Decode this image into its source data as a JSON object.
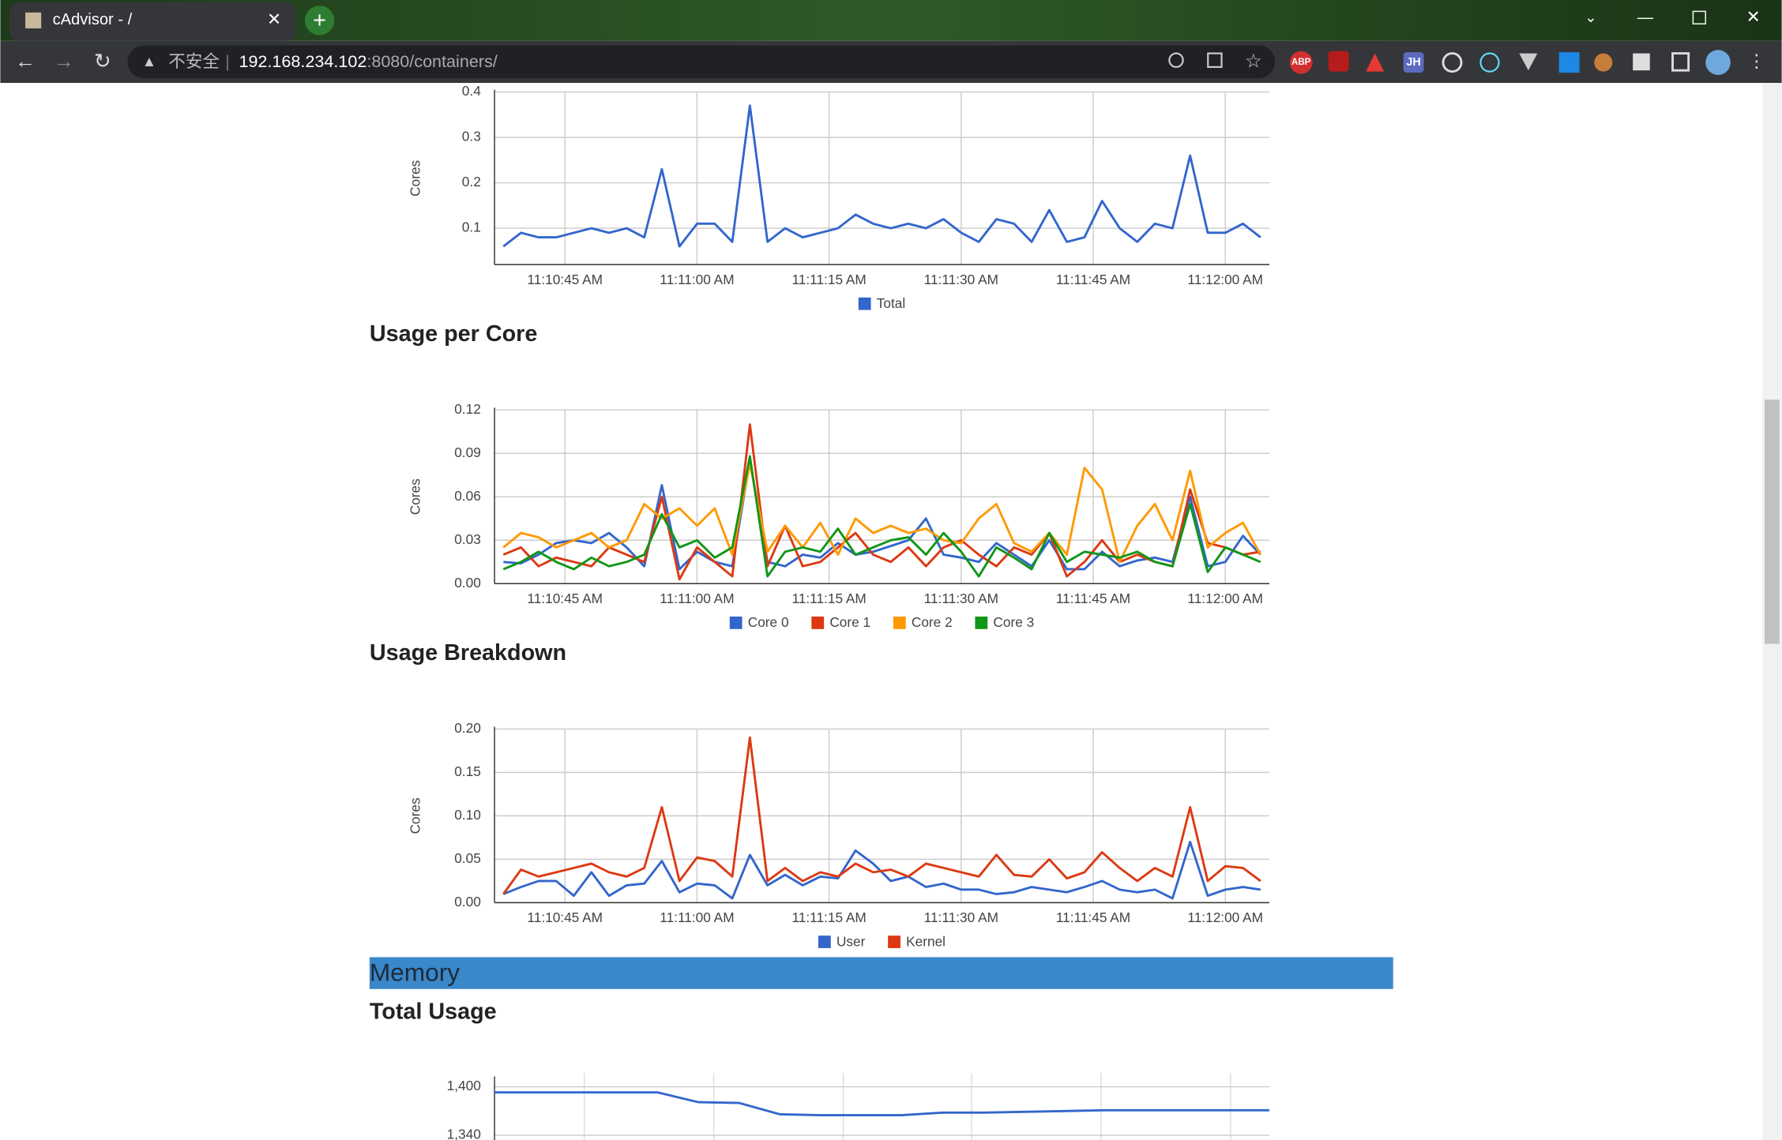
{
  "browser": {
    "tab_title": "cAdvisor - /",
    "address_warning": "不安全",
    "address_host": "192.168.234.102",
    "address_rest": ":8080/containers/",
    "extensions": [
      "ABP",
      "JH"
    ]
  },
  "memory_section": "Memory",
  "chart_data": [
    {
      "type": "line",
      "y_label": "Cores",
      "legend": "bottom",
      "grid": true,
      "x": [
        "11:10:38 AM",
        "11:10:40 AM",
        "11:10:42 AM",
        "11:10:44 AM",
        "11:10:46 AM",
        "11:10:48 AM",
        "11:10:50 AM",
        "11:10:52 AM",
        "11:10:54 AM",
        "11:10:56 AM",
        "11:10:58 AM",
        "11:11:00 AM",
        "11:11:02 AM",
        "11:11:04 AM",
        "11:11:06 AM",
        "11:11:08 AM",
        "11:11:10 AM",
        "11:11:12 AM",
        "11:11:14 AM",
        "11:11:16 AM",
        "11:11:18 AM",
        "11:11:20 AM",
        "11:11:22 AM",
        "11:11:24 AM",
        "11:11:26 AM",
        "11:11:28 AM",
        "11:11:30 AM",
        "11:11:32 AM",
        "11:11:34 AM",
        "11:11:36 AM",
        "11:11:38 AM",
        "11:11:40 AM",
        "11:11:42 AM",
        "11:11:44 AM",
        "11:11:46 AM",
        "11:11:48 AM",
        "11:11:50 AM",
        "11:11:52 AM",
        "11:11:54 AM",
        "11:11:56 AM",
        "11:11:58 AM",
        "11:12:00 AM",
        "11:12:02 AM",
        "11:12:04 AM"
      ],
      "xlim": [
        "11:10:37 AM",
        "11:12:05 AM"
      ],
      "xticks": [
        "11:10:45 AM",
        "11:11:00 AM",
        "11:11:15 AM",
        "11:11:30 AM",
        "11:11:45 AM",
        "11:12:00 AM"
      ],
      "ylim": [
        0.02,
        0.4
      ],
      "yticks": [
        0.1,
        0.2,
        0.3,
        0.4
      ],
      "series": [
        {
          "name": "Total",
          "color": "#3366cc",
          "values": [
            0.06,
            0.09,
            0.08,
            0.08,
            0.09,
            0.1,
            0.09,
            0.1,
            0.08,
            0.23,
            0.06,
            0.11,
            0.11,
            0.07,
            0.37,
            0.07,
            0.1,
            0.08,
            0.09,
            0.1,
            0.13,
            0.11,
            0.1,
            0.11,
            0.1,
            0.12,
            0.09,
            0.07,
            0.12,
            0.11,
            0.07,
            0.14,
            0.07,
            0.08,
            0.16,
            0.1,
            0.07,
            0.11,
            0.1,
            0.26,
            0.09,
            0.09,
            0.11,
            0.08
          ]
        }
      ]
    },
    {
      "type": "line",
      "title": "Usage per Core",
      "y_label": "Cores",
      "legend": "bottom",
      "grid": true,
      "x": [
        "11:10:38 AM",
        "11:10:40 AM",
        "11:10:42 AM",
        "11:10:44 AM",
        "11:10:46 AM",
        "11:10:48 AM",
        "11:10:50 AM",
        "11:10:52 AM",
        "11:10:54 AM",
        "11:10:56 AM",
        "11:10:58 AM",
        "11:11:00 AM",
        "11:11:02 AM",
        "11:11:04 AM",
        "11:11:06 AM",
        "11:11:08 AM",
        "11:11:10 AM",
        "11:11:12 AM",
        "11:11:14 AM",
        "11:11:16 AM",
        "11:11:18 AM",
        "11:11:20 AM",
        "11:11:22 AM",
        "11:11:24 AM",
        "11:11:26 AM",
        "11:11:28 AM",
        "11:11:30 AM",
        "11:11:32 AM",
        "11:11:34 AM",
        "11:11:36 AM",
        "11:11:38 AM",
        "11:11:40 AM",
        "11:11:42 AM",
        "11:11:44 AM",
        "11:11:46 AM",
        "11:11:48 AM",
        "11:11:50 AM",
        "11:11:52 AM",
        "11:11:54 AM",
        "11:11:56 AM",
        "11:11:58 AM",
        "11:12:00 AM",
        "11:12:02 AM",
        "11:12:04 AM"
      ],
      "xlim": [
        "11:10:37 AM",
        "11:12:05 AM"
      ],
      "xticks": [
        "11:10:45 AM",
        "11:11:00 AM",
        "11:11:15 AM",
        "11:11:30 AM",
        "11:11:45 AM",
        "11:12:00 AM"
      ],
      "ylim": [
        0,
        0.12
      ],
      "yticks": [
        {
          "value": 0,
          "label": "0.00"
        },
        {
          "value": 0.03,
          "label": "0.03"
        },
        {
          "value": 0.06,
          "label": "0.06"
        },
        {
          "value": 0.09,
          "label": "0.09"
        },
        {
          "value": 0.12,
          "label": "0.12"
        }
      ],
      "series": [
        {
          "name": "Core 0",
          "color": "#3366cc",
          "values": [
            0.015,
            0.014,
            0.02,
            0.028,
            0.03,
            0.028,
            0.035,
            0.025,
            0.012,
            0.068,
            0.01,
            0.022,
            0.015,
            0.012,
            0.085,
            0.015,
            0.012,
            0.02,
            0.018,
            0.028,
            0.02,
            0.022,
            0.026,
            0.03,
            0.045,
            0.02,
            0.018,
            0.015,
            0.028,
            0.02,
            0.012,
            0.03,
            0.01,
            0.01,
            0.022,
            0.012,
            0.016,
            0.018,
            0.015,
            0.06,
            0.012,
            0.015,
            0.033,
            0.02
          ]
        },
        {
          "name": "Core 1",
          "color": "#dc3912",
          "values": [
            0.02,
            0.025,
            0.012,
            0.018,
            0.015,
            0.012,
            0.025,
            0.02,
            0.015,
            0.06,
            0.003,
            0.025,
            0.015,
            0.005,
            0.11,
            0.012,
            0.04,
            0.012,
            0.015,
            0.025,
            0.035,
            0.02,
            0.015,
            0.025,
            0.012,
            0.025,
            0.03,
            0.02,
            0.012,
            0.025,
            0.02,
            0.035,
            0.005,
            0.015,
            0.03,
            0.015,
            0.02,
            0.015,
            0.012,
            0.065,
            0.028,
            0.025,
            0.02,
            0.022
          ]
        },
        {
          "name": "Core 2",
          "color": "#ff9900",
          "values": [
            0.025,
            0.035,
            0.032,
            0.025,
            0.03,
            0.035,
            0.025,
            0.03,
            0.055,
            0.045,
            0.052,
            0.04,
            0.052,
            0.02,
            0.083,
            0.022,
            0.04,
            0.025,
            0.042,
            0.02,
            0.045,
            0.035,
            0.04,
            0.035,
            0.038,
            0.03,
            0.028,
            0.045,
            0.055,
            0.028,
            0.022,
            0.035,
            0.02,
            0.08,
            0.065,
            0.015,
            0.04,
            0.055,
            0.03,
            0.078,
            0.025,
            0.035,
            0.042,
            0.02
          ]
        },
        {
          "name": "Core 3",
          "color": "#109618",
          "values": [
            0.01,
            0.015,
            0.022,
            0.015,
            0.01,
            0.018,
            0.012,
            0.015,
            0.02,
            0.048,
            0.025,
            0.03,
            0.018,
            0.025,
            0.088,
            0.005,
            0.022,
            0.025,
            0.022,
            0.038,
            0.02,
            0.025,
            0.03,
            0.032,
            0.02,
            0.035,
            0.022,
            0.005,
            0.025,
            0.018,
            0.01,
            0.035,
            0.015,
            0.022,
            0.02,
            0.018,
            0.022,
            0.015,
            0.012,
            0.055,
            0.008,
            0.025,
            0.02,
            0.015
          ]
        }
      ]
    },
    {
      "type": "line",
      "title": "Usage Breakdown",
      "y_label": "Cores",
      "legend": "bottom",
      "grid": true,
      "x": [
        "11:10:38 AM",
        "11:10:40 AM",
        "11:10:42 AM",
        "11:10:44 AM",
        "11:10:46 AM",
        "11:10:48 AM",
        "11:10:50 AM",
        "11:10:52 AM",
        "11:10:54 AM",
        "11:10:56 AM",
        "11:10:58 AM",
        "11:11:00 AM",
        "11:11:02 AM",
        "11:11:04 AM",
        "11:11:06 AM",
        "11:11:08 AM",
        "11:11:10 AM",
        "11:11:12 AM",
        "11:11:14 AM",
        "11:11:16 AM",
        "11:11:18 AM",
        "11:11:20 AM",
        "11:11:22 AM",
        "11:11:24 AM",
        "11:11:26 AM",
        "11:11:28 AM",
        "11:11:30 AM",
        "11:11:32 AM",
        "11:11:34 AM",
        "11:11:36 AM",
        "11:11:38 AM",
        "11:11:40 AM",
        "11:11:42 AM",
        "11:11:44 AM",
        "11:11:46 AM",
        "11:11:48 AM",
        "11:11:50 AM",
        "11:11:52 AM",
        "11:11:54 AM",
        "11:11:56 AM",
        "11:11:58 AM",
        "11:12:00 AM",
        "11:12:02 AM",
        "11:12:04 AM"
      ],
      "xlim": [
        "11:10:37 AM",
        "11:12:05 AM"
      ],
      "xticks": [
        "11:10:45 AM",
        "11:11:00 AM",
        "11:11:15 AM",
        "11:11:30 AM",
        "11:11:45 AM",
        "11:12:00 AM"
      ],
      "ylim": [
        0,
        0.2
      ],
      "yticks": [
        {
          "value": 0,
          "label": "0.00"
        },
        {
          "value": 0.05,
          "label": "0.05"
        },
        {
          "value": 0.1,
          "label": "0.10"
        },
        {
          "value": 0.15,
          "label": "0.15"
        },
        {
          "value": 0.2,
          "label": "0.20"
        }
      ],
      "series": [
        {
          "name": "User",
          "color": "#3366cc",
          "values": [
            0.01,
            0.018,
            0.025,
            0.025,
            0.008,
            0.035,
            0.008,
            0.02,
            0.022,
            0.048,
            0.012,
            0.022,
            0.02,
            0.005,
            0.055,
            0.02,
            0.032,
            0.02,
            0.03,
            0.028,
            0.06,
            0.045,
            0.025,
            0.03,
            0.018,
            0.022,
            0.015,
            0.015,
            0.01,
            0.012,
            0.018,
            0.015,
            0.012,
            0.018,
            0.025,
            0.015,
            0.012,
            0.015,
            0.005,
            0.07,
            0.008,
            0.015,
            0.018,
            0.015
          ]
        },
        {
          "name": "Kernel",
          "color": "#dc3912",
          "values": [
            0.01,
            0.038,
            0.03,
            0.035,
            0.04,
            0.045,
            0.035,
            0.03,
            0.04,
            0.11,
            0.025,
            0.052,
            0.048,
            0.03,
            0.19,
            0.025,
            0.04,
            0.025,
            0.035,
            0.03,
            0.045,
            0.035,
            0.038,
            0.03,
            0.045,
            0.04,
            0.035,
            0.03,
            0.055,
            0.032,
            0.03,
            0.05,
            0.028,
            0.035,
            0.058,
            0.04,
            0.025,
            0.04,
            0.03,
            0.11,
            0.025,
            0.042,
            0.04,
            0.025
          ]
        }
      ]
    },
    {
      "type": "line",
      "title": "Total Usage",
      "grid": true,
      "ylim": [
        1330,
        1410
      ],
      "yticks": [
        {
          "value": 1340,
          "label": "1,340"
        },
        {
          "value": 1400,
          "label": "1,400"
        }
      ],
      "series": [
        {
          "color": "#3366cc",
          "values": [
            1393,
            1393,
            1393,
            1393,
            1393,
            1381,
            1380,
            1366,
            1365,
            1365,
            1365,
            1368,
            1368,
            1369,
            1370,
            1371,
            1371,
            1371,
            1371,
            1371
          ]
        }
      ]
    }
  ]
}
